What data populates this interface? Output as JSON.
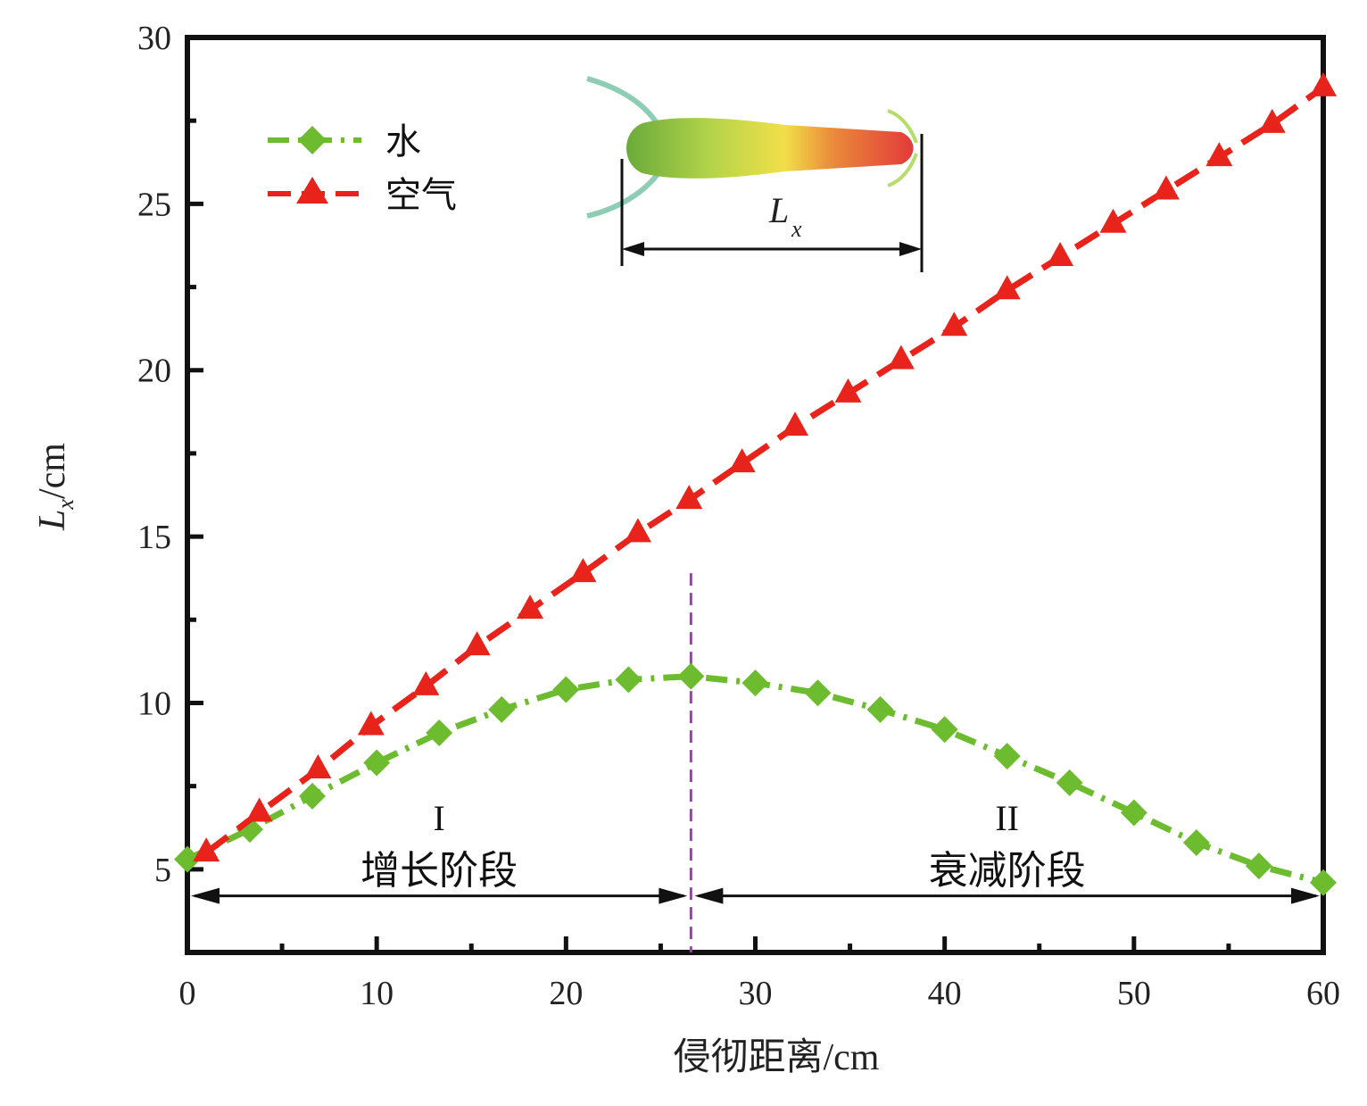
{
  "chart_data": {
    "type": "line",
    "xlabel": "侵彻距离/cm",
    "ylabel": "L",
    "ylabel_sub": "x",
    "ylabel_unit": "/cm",
    "xlim": [
      0,
      60
    ],
    "ylim": [
      2.5,
      30
    ],
    "xticks": [
      0,
      10,
      20,
      30,
      40,
      50,
      60
    ],
    "yticks": [
      5,
      10,
      15,
      20,
      25,
      30
    ],
    "legend_position": "top-left",
    "series": [
      {
        "name": "水",
        "color": "#6dbb2f",
        "marker": "diamond",
        "line_style": "dash-dot",
        "x": [
          0,
          3.3,
          6.6,
          10,
          13.3,
          16.6,
          20,
          23.3,
          26.6,
          30,
          33.3,
          36.6,
          40,
          43.3,
          46.6,
          50,
          53.3,
          56.6,
          60
        ],
        "y": [
          5.3,
          6.2,
          7.2,
          8.2,
          9.1,
          9.8,
          10.4,
          10.7,
          10.8,
          10.6,
          10.3,
          9.8,
          9.2,
          8.4,
          7.6,
          6.7,
          5.8,
          5.1,
          4.6
        ]
      },
      {
        "name": "空气",
        "color": "#e8231c",
        "marker": "triangle",
        "line_style": "dashed",
        "x": [
          1,
          3.8,
          6.9,
          9.7,
          12.6,
          15.3,
          18.1,
          20.9,
          23.8,
          26.5,
          29.3,
          32.1,
          34.9,
          37.7,
          40.5,
          43.3,
          46.1,
          48.9,
          51.7,
          54.5,
          57.3,
          60
        ],
        "y": [
          5.5,
          6.7,
          8.0,
          9.3,
          10.5,
          11.7,
          12.8,
          13.9,
          15.1,
          16.1,
          17.2,
          18.3,
          19.3,
          20.3,
          21.3,
          22.4,
          23.4,
          24.4,
          25.4,
          26.4,
          27.4,
          28.5
        ]
      }
    ],
    "phase_divider_x": 26.6,
    "phase_arrow_y": 4.2,
    "phases": [
      {
        "numeral": "I",
        "label": "增长阶段"
      },
      {
        "numeral": "II",
        "label": "衰减阶段"
      }
    ],
    "inset": {
      "label": "L",
      "label_sub": "x",
      "gradient_colors": [
        "#6aaa3a",
        "#b5d44a",
        "#f2df4a",
        "#ea8a3a",
        "#e33a3a"
      ]
    }
  }
}
